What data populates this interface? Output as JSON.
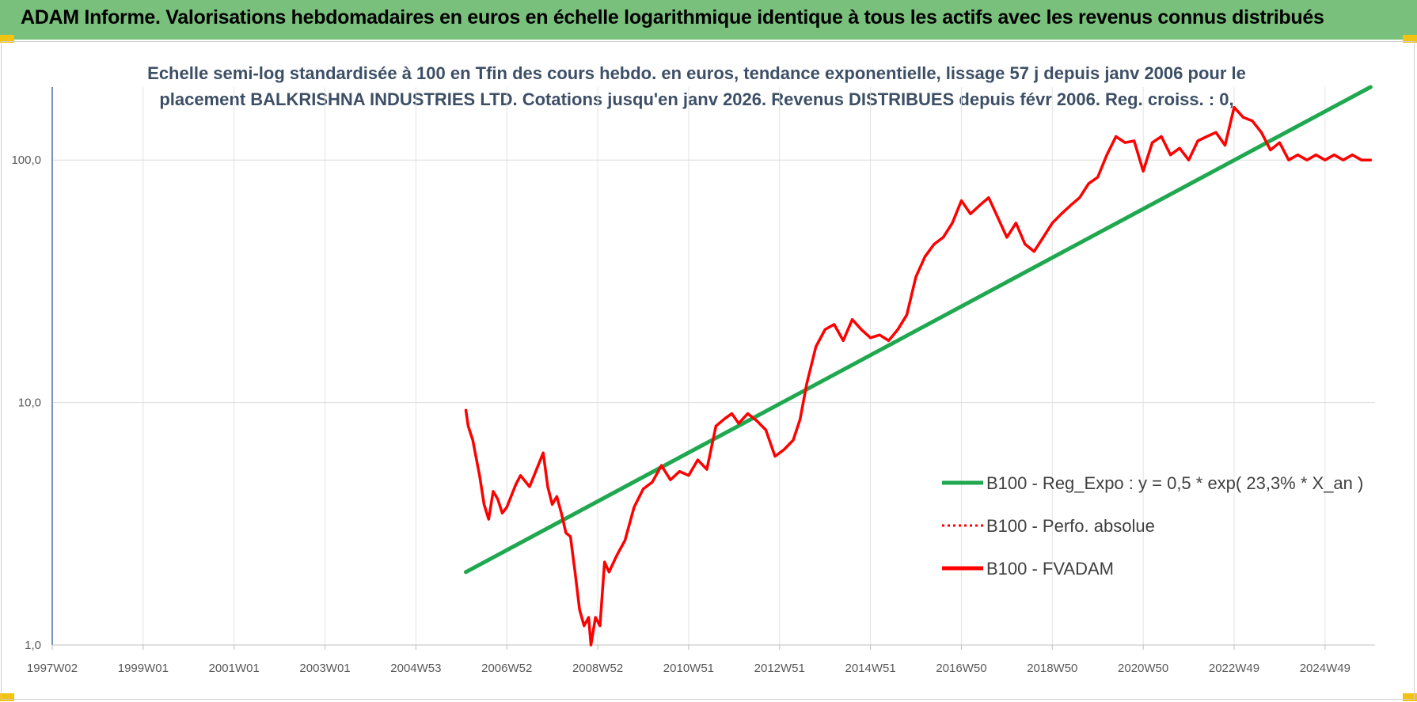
{
  "banner": {
    "title": "ADAM Informe. Valorisations hebdomadaires en euros en échelle logarithmique identique à tous les actifs avec les revenus connus distribués"
  },
  "chart_data": {
    "type": "line",
    "title_line1": "Echelle semi-log standardisée à 100 en Tfin des cours hebdo. en euros, tendance exponentielle, lissage 57 j depuis janv 2006 pour le",
    "title_line2": "placement BALKRISHNA INDUSTRIES LTD. Cotations jusqu'en janv 2026. Revenus DISTRIBUES depuis févr 2006. Reg. croiss. : 0,",
    "y_scale": "log",
    "ylim": [
      1,
      200
    ],
    "y_ticks": [
      "1,0",
      "10,0",
      "100,0"
    ],
    "y_tick_values": [
      1,
      10,
      100
    ],
    "xlim": [
      1997.0,
      2026.1
    ],
    "x_ticks": [
      "1997W02",
      "1999W01",
      "2001W01",
      "2003W01",
      "2004W53",
      "2006W52",
      "2008W52",
      "2010W51",
      "2012W51",
      "2014W51",
      "2016W50",
      "2018W50",
      "2020W50",
      "2022W49",
      "2024W49"
    ],
    "x_tick_values": [
      1997.0,
      1999.0,
      2001.0,
      2003.0,
      2005.0,
      2007.0,
      2009.0,
      2011.0,
      2013.0,
      2015.0,
      2017.0,
      2019.0,
      2021.0,
      2023.0,
      2025.0
    ],
    "grid": true,
    "legend_position": "right",
    "legend": [
      "B100 - Reg_Expo : y = 0,5 * exp( 23,3% *  X_an )",
      "B100 - Perfo. absolue",
      "B100 - FVADAM"
    ],
    "series": [
      {
        "name": "B100 - Reg_Expo : y = 0,5 * exp( 23,3% *  X_an )",
        "color": "#1fa84f",
        "style": "solid",
        "x": [
          2006.1,
          2026.0
        ],
        "y": [
          2.0,
          200
        ]
      },
      {
        "name": "B100 - Perfo. absolue",
        "color": "#ff0000",
        "style": "dotted",
        "x": [],
        "y": []
      },
      {
        "name": "B100 - FVADAM",
        "color": "#ff0000",
        "style": "solid",
        "x": [
          2006.1,
          2006.15,
          2006.25,
          2006.4,
          2006.5,
          2006.6,
          2006.7,
          2006.8,
          2006.9,
          2007.0,
          2007.2,
          2007.3,
          2007.5,
          2007.6,
          2007.8,
          2007.9,
          2008.0,
          2008.1,
          2008.2,
          2008.3,
          2008.4,
          2008.5,
          2008.6,
          2008.7,
          2008.8,
          2008.85,
          2008.95,
          2009.05,
          2009.15,
          2009.25,
          2009.4,
          2009.45,
          2009.6,
          2009.8,
          2010.0,
          2010.2,
          2010.4,
          2010.6,
          2010.8,
          2011.0,
          2011.2,
          2011.4,
          2011.6,
          2011.8,
          2011.95,
          2012.1,
          2012.3,
          2012.5,
          2012.7,
          2012.9,
          2013.1,
          2013.3,
          2013.45,
          2013.6,
          2013.8,
          2014.0,
          2014.2,
          2014.4,
          2014.6,
          2014.8,
          2015.0,
          2015.2,
          2015.4,
          2015.6,
          2015.8,
          2016.0,
          2016.2,
          2016.4,
          2016.6,
          2016.8,
          2017.0,
          2017.2,
          2017.4,
          2017.6,
          2017.8,
          2018.0,
          2018.2,
          2018.4,
          2018.6,
          2018.8,
          2019.0,
          2019.2,
          2019.4,
          2019.6,
          2019.8,
          2020.0,
          2020.2,
          2020.4,
          2020.6,
          2020.8,
          2021.0,
          2021.2,
          2021.4,
          2021.6,
          2021.8,
          2022.0,
          2022.2,
          2022.4,
          2022.6,
          2022.8,
          2023.0,
          2023.2,
          2023.4,
          2023.6,
          2023.8,
          2024.0,
          2024.2,
          2024.4,
          2024.6,
          2024.8,
          2025.0,
          2025.2,
          2025.4,
          2025.6,
          2025.8,
          2026.0
        ],
        "y": [
          9.3,
          8.0,
          7.0,
          5.0,
          3.8,
          3.3,
          4.3,
          4.0,
          3.5,
          3.7,
          4.6,
          5.0,
          4.5,
          5.0,
          6.2,
          4.5,
          3.8,
          4.1,
          3.5,
          2.9,
          2.8,
          2.0,
          1.4,
          1.2,
          1.3,
          1.0,
          1.3,
          1.2,
          2.2,
          2.0,
          2.3,
          2.4,
          2.7,
          3.7,
          4.4,
          4.7,
          5.5,
          4.8,
          5.2,
          5.0,
          5.8,
          5.3,
          8.0,
          8.6,
          9.0,
          8.2,
          9.0,
          8.4,
          7.7,
          6.0,
          6.4,
          7.0,
          8.5,
          12.0,
          17.0,
          20.0,
          21.0,
          18.0,
          22.0,
          20.0,
          18.5,
          19.0,
          18.0,
          20.0,
          23.0,
          33.0,
          40.0,
          45.0,
          48.0,
          55.0,
          68.0,
          60.0,
          65.0,
          70.0,
          58.0,
          48.0,
          55.0,
          45.0,
          42.0,
          48.0,
          55.0,
          60.0,
          65.0,
          70.0,
          80.0,
          85.0,
          105.0,
          125.0,
          118.0,
          120.0,
          90.0,
          118.0,
          125.0,
          105.0,
          112.0,
          100.0,
          120.0,
          125.0,
          130.0,
          115.0,
          165.0,
          150.0,
          145.0,
          130.0,
          110.0,
          118.0,
          100.0,
          105.0,
          100.0,
          105.0,
          100.0,
          105.0,
          100.0,
          105.0,
          100.0,
          100.0
        ]
      }
    ]
  }
}
